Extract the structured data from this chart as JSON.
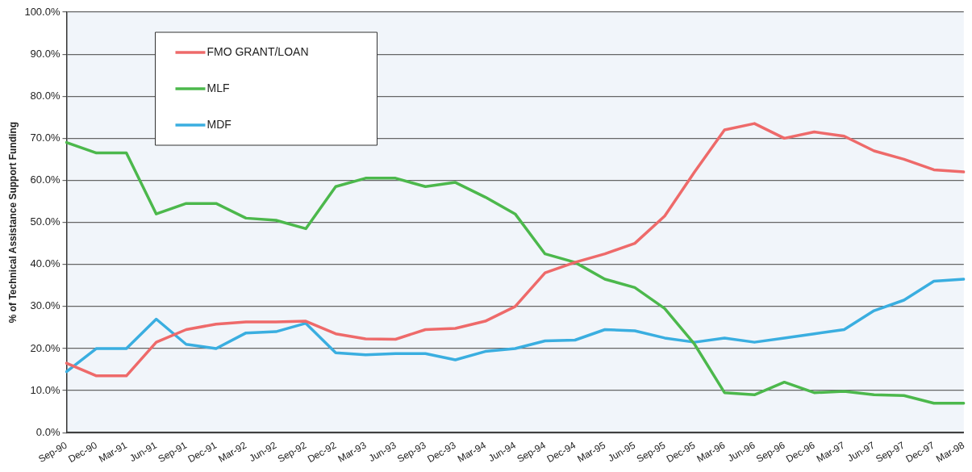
{
  "chart_data": {
    "type": "line",
    "ylabel": "% of Technical Assistance Support Funding",
    "categories": [
      "Sep-90",
      "Dec-90",
      "Mar-91",
      "Jun-91",
      "Sep-91",
      "Dec-91",
      "Mar-92",
      "Jun-92",
      "Sep-92",
      "Dec-92",
      "Mar-93",
      "Jun-93",
      "Sep-93",
      "Dec-93",
      "Mar-94",
      "Jun-94",
      "Sep-94",
      "Dec-94",
      "Mar-95",
      "Jun-95",
      "Sep-95",
      "Dec-95",
      "Mar-96",
      "Jun-96",
      "Sep-96",
      "Dec-96",
      "Mar-97",
      "Jun-97",
      "Sep-97",
      "Dec-97",
      "Mar-98"
    ],
    "series": [
      {
        "name": "FMO GRANT/LOAN",
        "color": "#ee6a6a",
        "values": [
          16.5,
          13.5,
          13.5,
          21.5,
          24.5,
          25.8,
          26.3,
          26.3,
          26.5,
          23.5,
          22.3,
          22.2,
          24.5,
          24.8,
          26.5,
          30,
          38,
          40.5,
          42.5,
          45,
          51.5,
          62,
          72,
          73.5,
          70,
          71.5,
          70.5,
          67,
          65,
          62.5,
          62
        ]
      },
      {
        "name": "MLF",
        "color": "#4cb84c",
        "values": [
          69,
          66.5,
          66.5,
          52,
          54.5,
          54.5,
          51,
          50.5,
          48.5,
          58.5,
          60.5,
          60.5,
          58.5,
          59.5,
          56,
          52,
          42.5,
          40.5,
          36.5,
          34.5,
          29.5,
          21,
          9.5,
          9,
          12,
          9.5,
          9.8,
          9,
          8.8,
          7,
          7
        ]
      },
      {
        "name": "MDF",
        "color": "#3aaee0",
        "values": [
          14.5,
          20,
          20,
          27,
          21,
          20,
          23.7,
          24,
          26,
          19,
          18.5,
          18.8,
          18.8,
          17.3,
          19.3,
          20,
          21.8,
          22,
          24.5,
          24.2,
          22.5,
          21.5,
          22.5,
          21.5,
          22.5,
          23.5,
          24.5,
          29,
          31.5,
          36,
          36.5
        ]
      }
    ],
    "ylim": [
      0,
      100
    ],
    "yticks": [
      {
        "value": 0,
        "label": "0.0%"
      },
      {
        "value": 10,
        "label": "10.0%"
      },
      {
        "value": 20,
        "label": "20.0%"
      },
      {
        "value": 30,
        "label": "30.0%"
      },
      {
        "value": 40,
        "label": "40.0%"
      },
      {
        "value": 50,
        "label": "50.0%"
      },
      {
        "value": 60,
        "label": "60.0%"
      },
      {
        "value": 70,
        "label": "70.0%"
      },
      {
        "value": 80,
        "label": "80.0%"
      },
      {
        "value": 90,
        "label": "90.0%"
      },
      {
        "value": 100,
        "label": "100.0%"
      }
    ],
    "grid": "y",
    "legend": "top left",
    "marker": "none",
    "line_style": "solid"
  }
}
